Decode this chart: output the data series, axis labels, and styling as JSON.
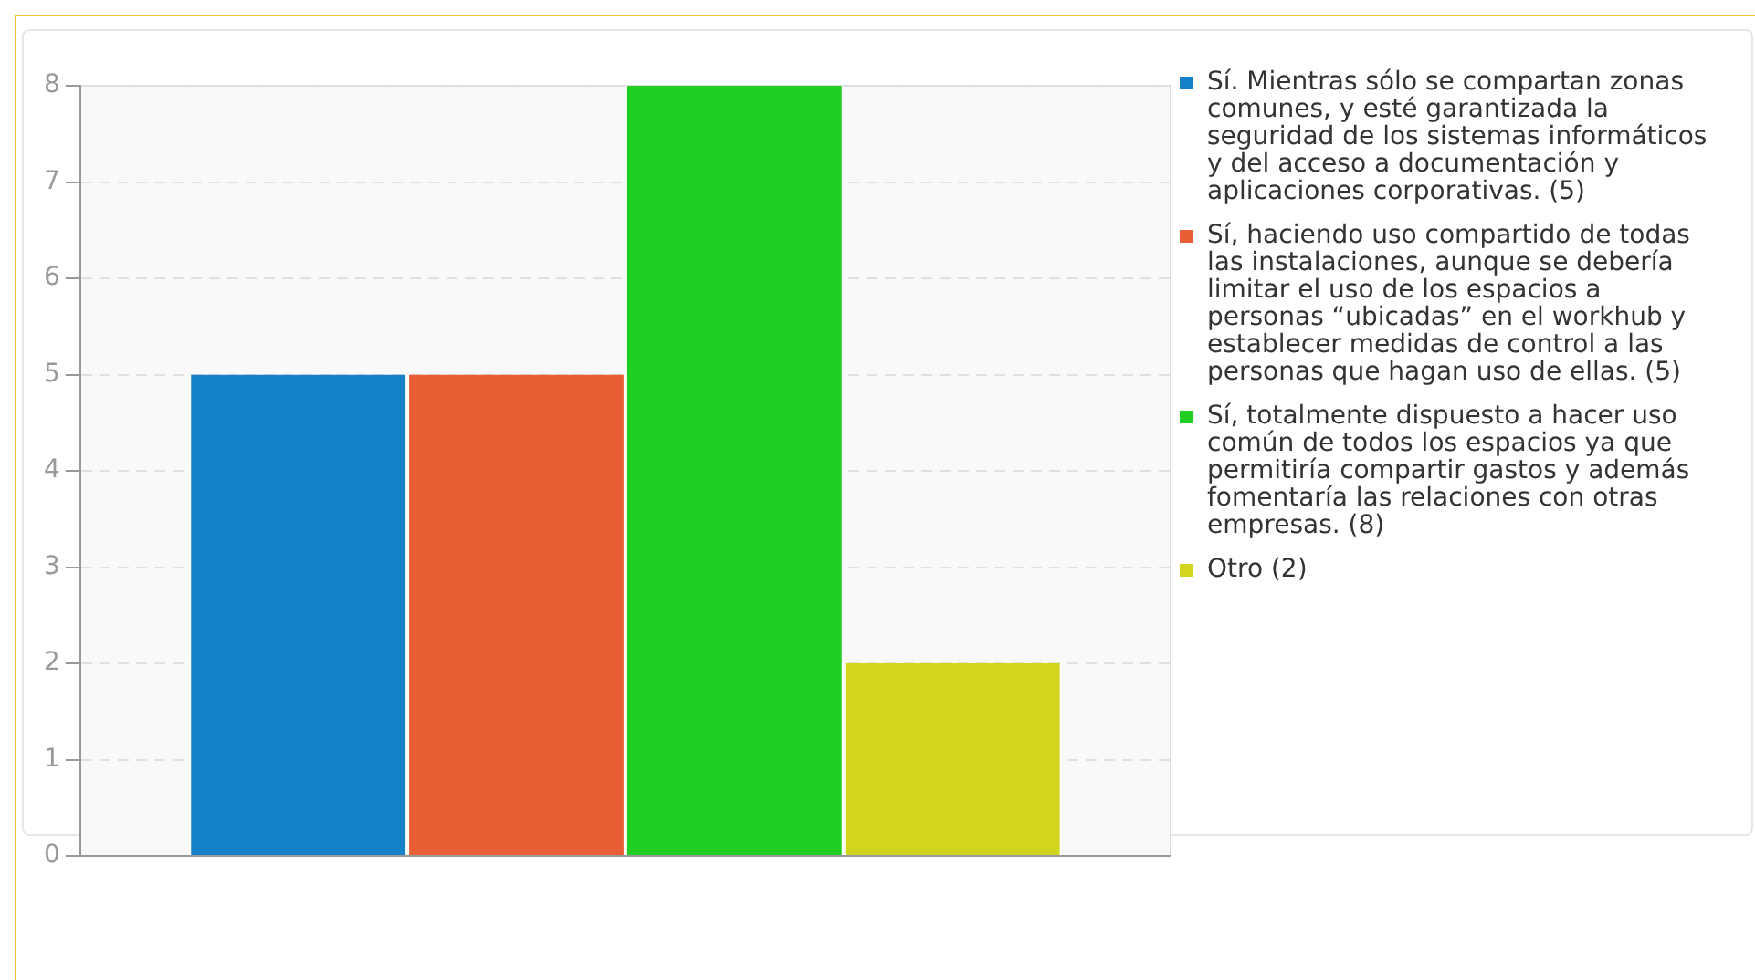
{
  "chart_data": {
    "type": "bar",
    "categories": [
      null
    ],
    "series": [
      {
        "name": "Sí. Mientras sólo se compartan zonas comunes, y esté garantizada la seguridad de los sistemas informáticos y del acceso a documentación y aplicaciones corporativas. (5)",
        "color": "#1581c8",
        "values": [
          5
        ]
      },
      {
        "name": "Sí, haciendo uso compartido de todas las instalaciones, aunque se debería limitar el uso de los espacios a personas “ubicadas” en el workhub y establecer medidas de control a las personas que hagan uso de ellas. (5)",
        "color": "#e85f35",
        "values": [
          5
        ]
      },
      {
        "name": "Sí, totalmente dispuesto a hacer uso común de todos los espacios ya que permitiría compartir gastos y además fomentaría las relaciones con otras empresas. (8)",
        "color": "#21cf24",
        "values": [
          8
        ]
      },
      {
        "name": "Otro (2)",
        "color": "#d3d41e",
        "values": [
          2
        ]
      }
    ],
    "ylim": [
      0,
      8
    ],
    "yticks": [
      0,
      1,
      2,
      3,
      4,
      5,
      6,
      7,
      8
    ],
    "grid": "y",
    "legend": "right"
  }
}
